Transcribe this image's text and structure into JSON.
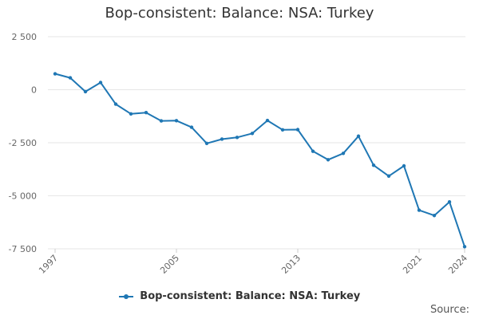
{
  "chart_data": {
    "type": "line",
    "title": "Bop-consistent: Balance: NSA: Turkey",
    "xlabel": "",
    "ylabel": "",
    "x": [
      1997,
      1998,
      1999,
      2000,
      2001,
      2002,
      2003,
      2004,
      2005,
      2006,
      2007,
      2008,
      2009,
      2010,
      2011,
      2012,
      2013,
      2014,
      2015,
      2016,
      2017,
      2018,
      2019,
      2020,
      2021,
      2022,
      2023,
      2024
    ],
    "series": [
      {
        "name": "Bop-consistent: Balance: NSA: Turkey",
        "color": "#1f77b4",
        "values": [
          750,
          560,
          -90,
          340,
          -680,
          -1140,
          -1080,
          -1470,
          -1460,
          -1770,
          -2530,
          -2330,
          -2250,
          -2060,
          -1450,
          -1890,
          -1880,
          -2900,
          -3300,
          -3000,
          -2190,
          -3560,
          -4070,
          -3590,
          -5680,
          -5930,
          -5290,
          -7400
        ]
      }
    ],
    "xticks": [
      1997,
      2005,
      2013,
      2021,
      2024
    ],
    "yticks": [
      2500,
      0,
      -2500,
      -5000,
      -7500
    ],
    "ytick_labels": [
      "2 500",
      "0",
      "-2 500",
      "-5 000",
      "-7 500"
    ],
    "ylim": [
      -7500,
      2500
    ],
    "xlim": [
      1997,
      2024
    ],
    "grid": "horizontal",
    "legend_position": "bottom-center"
  },
  "legend": {
    "label": "Bop-consistent: Balance: NSA: Turkey"
  },
  "source": {
    "label": "Source:"
  }
}
